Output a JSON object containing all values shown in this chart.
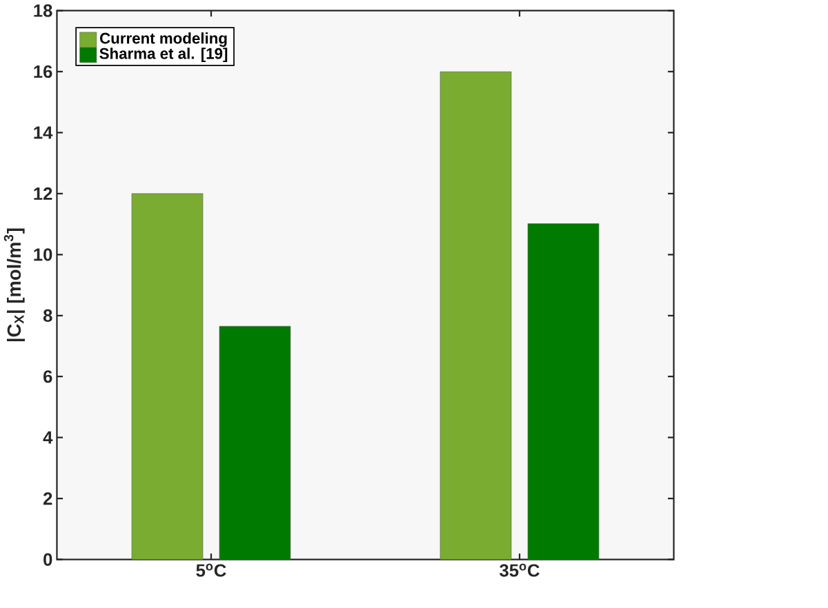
{
  "chart_data": {
    "type": "bar",
    "ylabel": "|C$_{X}$| [mol/m$^{3}$]",
    "categories": [
      "5$^{o}$C",
      "35$^{o}$C"
    ],
    "series": [
      {
        "name": "Current modeling",
        "color": "#79ac31",
        "values": [
          12,
          16
        ]
      },
      {
        "name": "Sharma et al. [19]",
        "color": "#007a00",
        "values": [
          7.65,
          11.02
        ]
      }
    ],
    "ylim": [
      0,
      18
    ],
    "yticks": [
      0,
      2,
      4,
      6,
      8,
      10,
      12,
      14,
      16,
      18
    ],
    "legend": "top left"
  }
}
